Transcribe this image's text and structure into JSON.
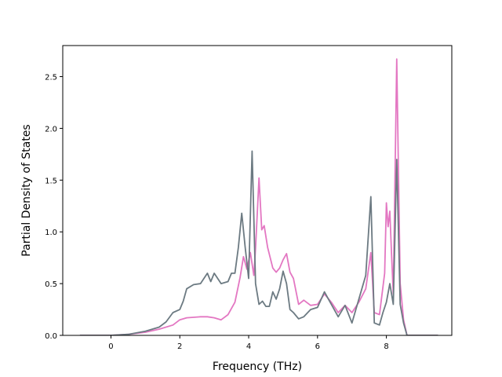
{
  "chart_data": {
    "type": "line",
    "title": "",
    "xlabel": "Frequency (THz)",
    "ylabel": "Partial Density of States",
    "xlim": [
      -1.4,
      9.9
    ],
    "ylim": [
      0,
      2.8
    ],
    "xticks": [
      0,
      2,
      4,
      6,
      8
    ],
    "xtick_labels": [
      "0",
      "2",
      "4",
      "6",
      "8"
    ],
    "yticks": [
      0.0,
      0.5,
      1.0,
      1.5,
      2.0,
      2.5
    ],
    "ytick_labels": [
      "0.0",
      "0.5",
      "1.0",
      "1.5",
      "2.0",
      "2.5"
    ],
    "grid": false,
    "legend": "none",
    "series": [
      {
        "color": "#e377c2",
        "points": [
          [
            -0.9,
            0.0
          ],
          [
            0.0,
            0.0
          ],
          [
            0.5,
            0.01
          ],
          [
            1.0,
            0.03
          ],
          [
            1.4,
            0.06
          ],
          [
            1.8,
            0.1
          ],
          [
            2.0,
            0.15
          ],
          [
            2.2,
            0.17
          ],
          [
            2.6,
            0.18
          ],
          [
            2.8,
            0.18
          ],
          [
            3.0,
            0.17
          ],
          [
            3.2,
            0.15
          ],
          [
            3.4,
            0.2
          ],
          [
            3.6,
            0.32
          ],
          [
            3.75,
            0.56
          ],
          [
            3.85,
            0.76
          ],
          [
            3.95,
            0.64
          ],
          [
            4.05,
            0.8
          ],
          [
            4.15,
            0.58
          ],
          [
            4.2,
            0.84
          ],
          [
            4.3,
            1.52
          ],
          [
            4.38,
            1.02
          ],
          [
            4.45,
            1.06
          ],
          [
            4.55,
            0.85
          ],
          [
            4.7,
            0.65
          ],
          [
            4.8,
            0.61
          ],
          [
            4.9,
            0.65
          ],
          [
            5.0,
            0.73
          ],
          [
            5.1,
            0.79
          ],
          [
            5.2,
            0.61
          ],
          [
            5.3,
            0.55
          ],
          [
            5.45,
            0.3
          ],
          [
            5.6,
            0.34
          ],
          [
            5.8,
            0.29
          ],
          [
            6.0,
            0.3
          ],
          [
            6.2,
            0.4
          ],
          [
            6.4,
            0.32
          ],
          [
            6.6,
            0.22
          ],
          [
            6.8,
            0.29
          ],
          [
            7.0,
            0.22
          ],
          [
            7.2,
            0.32
          ],
          [
            7.4,
            0.45
          ],
          [
            7.55,
            0.8
          ],
          [
            7.65,
            0.22
          ],
          [
            7.8,
            0.2
          ],
          [
            7.95,
            0.6
          ],
          [
            8.0,
            1.28
          ],
          [
            8.05,
            1.05
          ],
          [
            8.1,
            1.2
          ],
          [
            8.15,
            0.78
          ],
          [
            8.2,
            0.4
          ],
          [
            8.3,
            2.67
          ],
          [
            8.4,
            0.5
          ],
          [
            8.5,
            0.15
          ],
          [
            8.6,
            0.0
          ],
          [
            9.5,
            0.0
          ]
        ]
      },
      {
        "color": "#6c7a82",
        "points": [
          [
            -0.9,
            0.0
          ],
          [
            0.0,
            0.0
          ],
          [
            0.5,
            0.01
          ],
          [
            1.0,
            0.04
          ],
          [
            1.4,
            0.08
          ],
          [
            1.6,
            0.13
          ],
          [
            1.8,
            0.22
          ],
          [
            2.0,
            0.25
          ],
          [
            2.1,
            0.33
          ],
          [
            2.2,
            0.45
          ],
          [
            2.4,
            0.49
          ],
          [
            2.6,
            0.5
          ],
          [
            2.8,
            0.6
          ],
          [
            2.9,
            0.52
          ],
          [
            3.0,
            0.6
          ],
          [
            3.2,
            0.5
          ],
          [
            3.4,
            0.52
          ],
          [
            3.5,
            0.6
          ],
          [
            3.6,
            0.6
          ],
          [
            3.7,
            0.85
          ],
          [
            3.8,
            1.18
          ],
          [
            3.9,
            0.85
          ],
          [
            4.0,
            0.55
          ],
          [
            4.1,
            1.78
          ],
          [
            4.2,
            0.5
          ],
          [
            4.3,
            0.3
          ],
          [
            4.4,
            0.33
          ],
          [
            4.5,
            0.28
          ],
          [
            4.6,
            0.28
          ],
          [
            4.7,
            0.42
          ],
          [
            4.8,
            0.35
          ],
          [
            4.9,
            0.45
          ],
          [
            5.0,
            0.62
          ],
          [
            5.1,
            0.5
          ],
          [
            5.2,
            0.25
          ],
          [
            5.3,
            0.22
          ],
          [
            5.45,
            0.16
          ],
          [
            5.6,
            0.18
          ],
          [
            5.8,
            0.25
          ],
          [
            6.0,
            0.27
          ],
          [
            6.2,
            0.42
          ],
          [
            6.4,
            0.3
          ],
          [
            6.6,
            0.18
          ],
          [
            6.8,
            0.29
          ],
          [
            7.0,
            0.12
          ],
          [
            7.2,
            0.35
          ],
          [
            7.4,
            0.58
          ],
          [
            7.55,
            1.34
          ],
          [
            7.65,
            0.12
          ],
          [
            7.8,
            0.1
          ],
          [
            7.9,
            0.22
          ],
          [
            8.0,
            0.32
          ],
          [
            8.1,
            0.5
          ],
          [
            8.2,
            0.3
          ],
          [
            8.3,
            1.7
          ],
          [
            8.4,
            0.3
          ],
          [
            8.5,
            0.12
          ],
          [
            8.6,
            0.0
          ],
          [
            9.5,
            0.0
          ]
        ]
      }
    ]
  }
}
